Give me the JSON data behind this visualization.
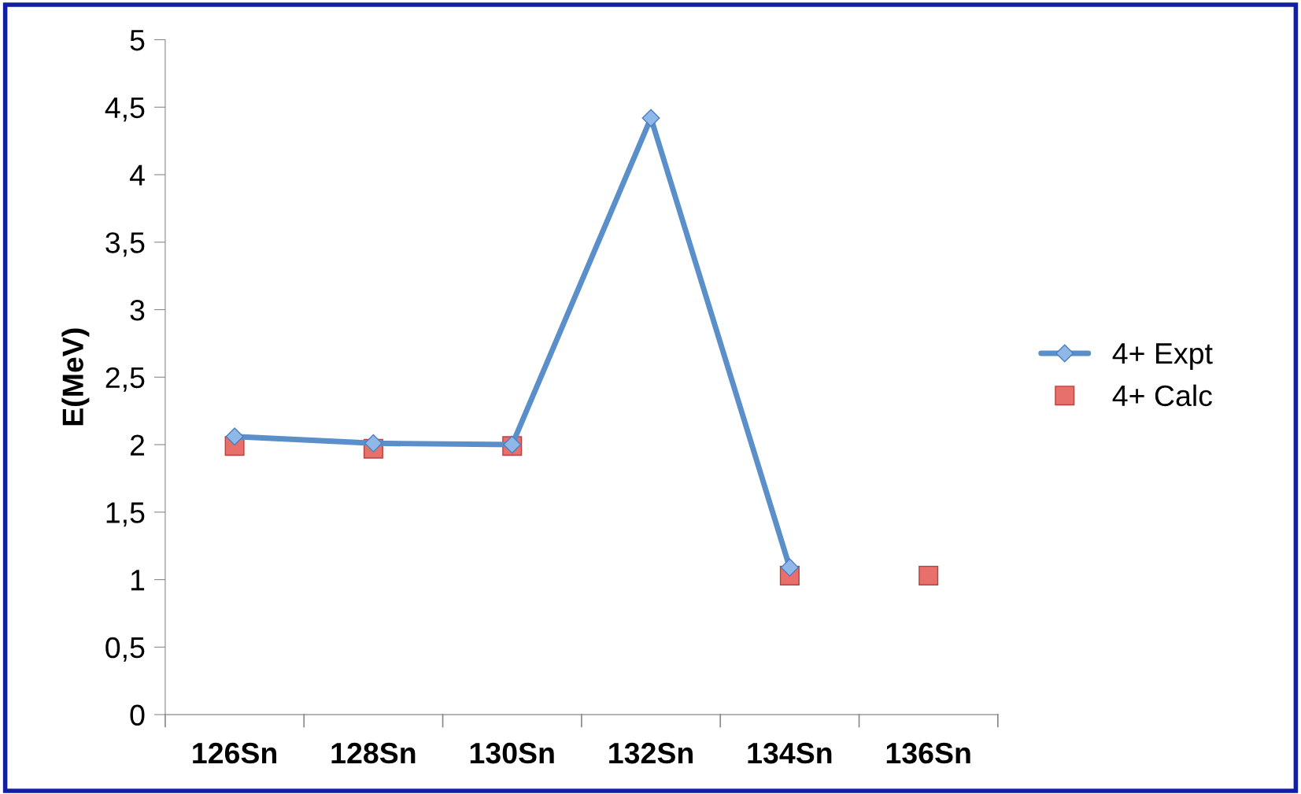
{
  "chart_data": {
    "type": "line",
    "ylabel": "E(MeV)",
    "categories": [
      "126Sn",
      "128Sn",
      "130Sn",
      "132Sn",
      "134Sn",
      "136Sn"
    ],
    "series": [
      {
        "name": "4+ Expt",
        "color": "#5b8fc9",
        "marker": "diamond",
        "line_style": "solid",
        "values": [
          2.06,
          2.01,
          2.0,
          4.42,
          1.09,
          null
        ]
      },
      {
        "name": "4+ Calc",
        "type": "scatter",
        "color": "#e8706a",
        "marker": "square",
        "values": [
          1.99,
          1.97,
          1.99,
          null,
          1.03,
          1.03
        ]
      }
    ],
    "ylim": [
      0,
      5
    ],
    "yticks": [
      0,
      {
        "value": 0.5,
        "label": "0,5"
      },
      1,
      {
        "value": 1.5,
        "label": "1,5"
      },
      2,
      {
        "value": 2.5,
        "label": "2,5"
      },
      3,
      {
        "value": 3.5,
        "label": "3,5"
      },
      4,
      {
        "value": 4.5,
        "label": "4,5"
      },
      5
    ],
    "grid": false,
    "legend": "right"
  }
}
